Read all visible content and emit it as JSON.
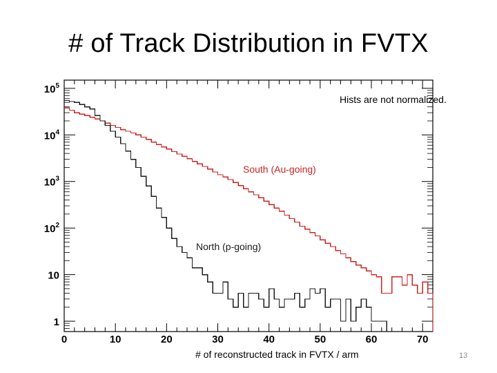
{
  "slide": {
    "title": "# of Track Distribution in FVTX",
    "page_number": "13"
  },
  "chart_data": {
    "type": "histogram",
    "title": "",
    "xlabel": "# of reconstructed track in FVTX / arm",
    "ylabel": "",
    "xlim": [
      0,
      72
    ],
    "ylim": [
      0.6,
      150000
    ],
    "yscale": "log",
    "annotation": "Hists are not normalized.",
    "x_ticks": [
      "0",
      "10",
      "20",
      "30",
      "40",
      "50",
      "60",
      "70"
    ],
    "y_ticks": [
      {
        "value": 1,
        "base": "1",
        "exp": ""
      },
      {
        "value": 10,
        "base": "10",
        "exp": ""
      },
      {
        "value": 100,
        "base": "10",
        "exp": "2"
      },
      {
        "value": 1000,
        "base": "10",
        "exp": "3"
      },
      {
        "value": 10000,
        "base": "10",
        "exp": "4"
      },
      {
        "value": 100000,
        "base": "10",
        "exp": "5"
      }
    ],
    "bin_width": 1,
    "series": [
      {
        "name": "South (Au-going)",
        "color": "#cc2222",
        "values": [
          38000,
          34000,
          30000,
          28000,
          26000,
          24000,
          22000,
          20000,
          18000,
          16000,
          14500,
          13000,
          12000,
          11000,
          10000,
          9000,
          8000,
          7000,
          6200,
          5500,
          5000,
          4400,
          3900,
          3500,
          3100,
          2700,
          2400,
          2100,
          1850,
          1600,
          1400,
          1250,
          1100,
          950,
          820,
          700,
          600,
          520,
          450,
          380,
          320,
          270,
          230,
          190,
          160,
          135,
          110,
          95,
          80,
          68,
          56,
          47,
          40,
          33,
          28,
          23,
          19,
          16,
          14,
          12,
          10,
          9,
          4,
          4,
          9,
          9,
          6,
          10,
          6,
          4,
          7,
          4
        ]
      },
      {
        "name": "North (p-going)",
        "color": "#1a1a1a",
        "values": [
          55000,
          52000,
          50000,
          45000,
          40000,
          36000,
          26000,
          20000,
          16000,
          12000,
          9000,
          6500,
          4500,
          3000,
          2000,
          1300,
          800,
          480,
          270,
          170,
          100,
          60,
          40,
          30,
          23,
          14,
          14,
          10,
          7,
          4,
          4,
          7,
          3,
          2,
          4,
          2,
          4,
          4,
          3,
          2,
          5,
          3,
          2,
          3,
          3,
          4,
          2,
          3,
          5,
          4,
          5,
          2,
          3,
          3,
          1,
          3,
          1,
          2,
          3,
          2,
          1,
          1,
          1
        ]
      }
    ]
  }
}
